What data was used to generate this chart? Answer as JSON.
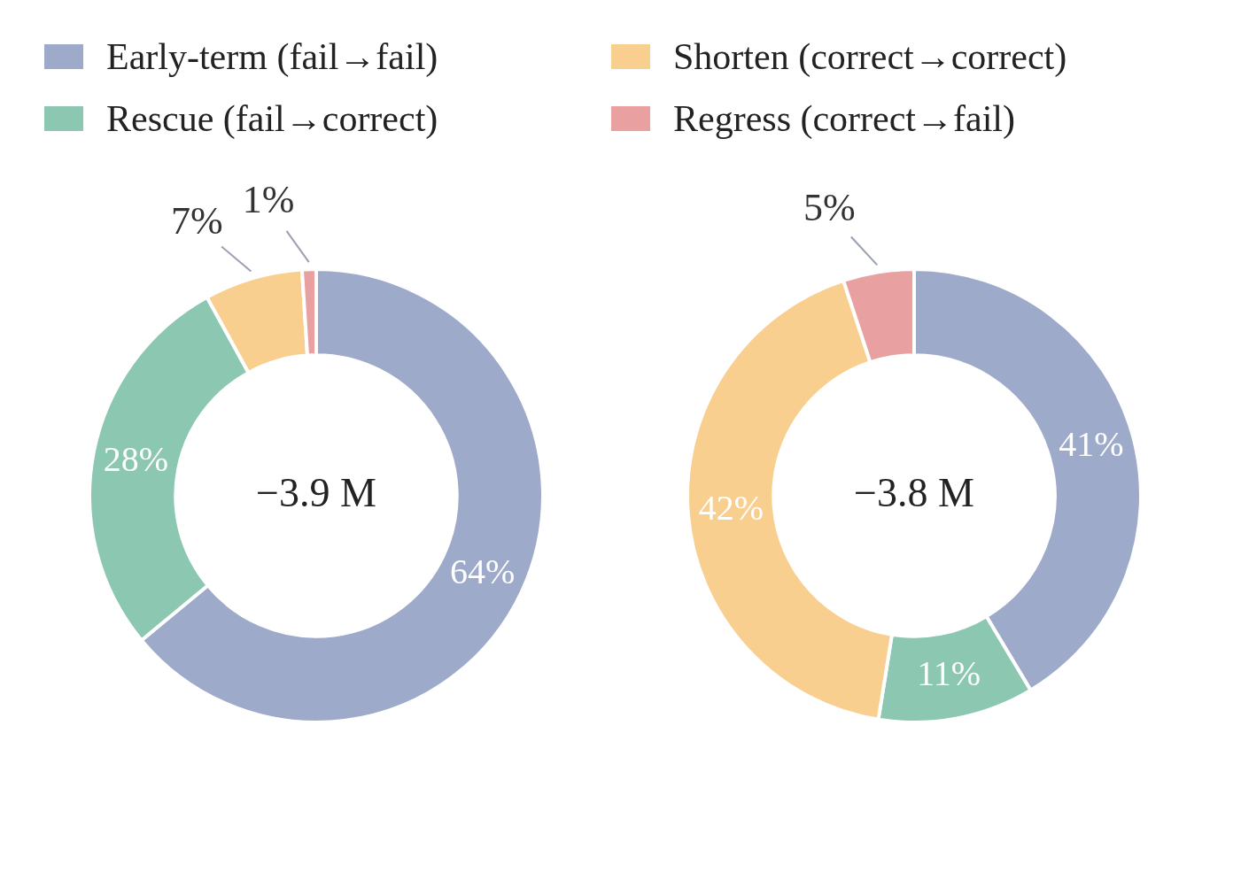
{
  "chart_data": [
    {
      "type": "donut",
      "legend": "top",
      "categories": [
        "Early-term (fail→fail)",
        "Rescue (fail→correct)",
        "Shorten (correct→correct)",
        "Regress (correct→fail)"
      ],
      "values": [
        64,
        28,
        7,
        1
      ],
      "colors": [
        "#9daac9",
        "#8cc7b2",
        "#f9cf8f",
        "#e8a0a0"
      ],
      "value_labels": [
        "64%",
        "28%",
        "7%",
        "1%"
      ],
      "annotations": [
        "−3.9 M"
      ]
    },
    {
      "type": "donut",
      "categories": [
        null,
        null,
        null,
        null
      ],
      "values": [
        41,
        11,
        42,
        5
      ],
      "colors": [
        "#9daac9",
        "#8cc7b2",
        "#f9cf8f",
        "#e8a0a0"
      ],
      "value_labels": [
        "41%",
        "11%",
        "42%",
        "5%"
      ],
      "annotations": [
        "−3.8 M"
      ]
    }
  ]
}
